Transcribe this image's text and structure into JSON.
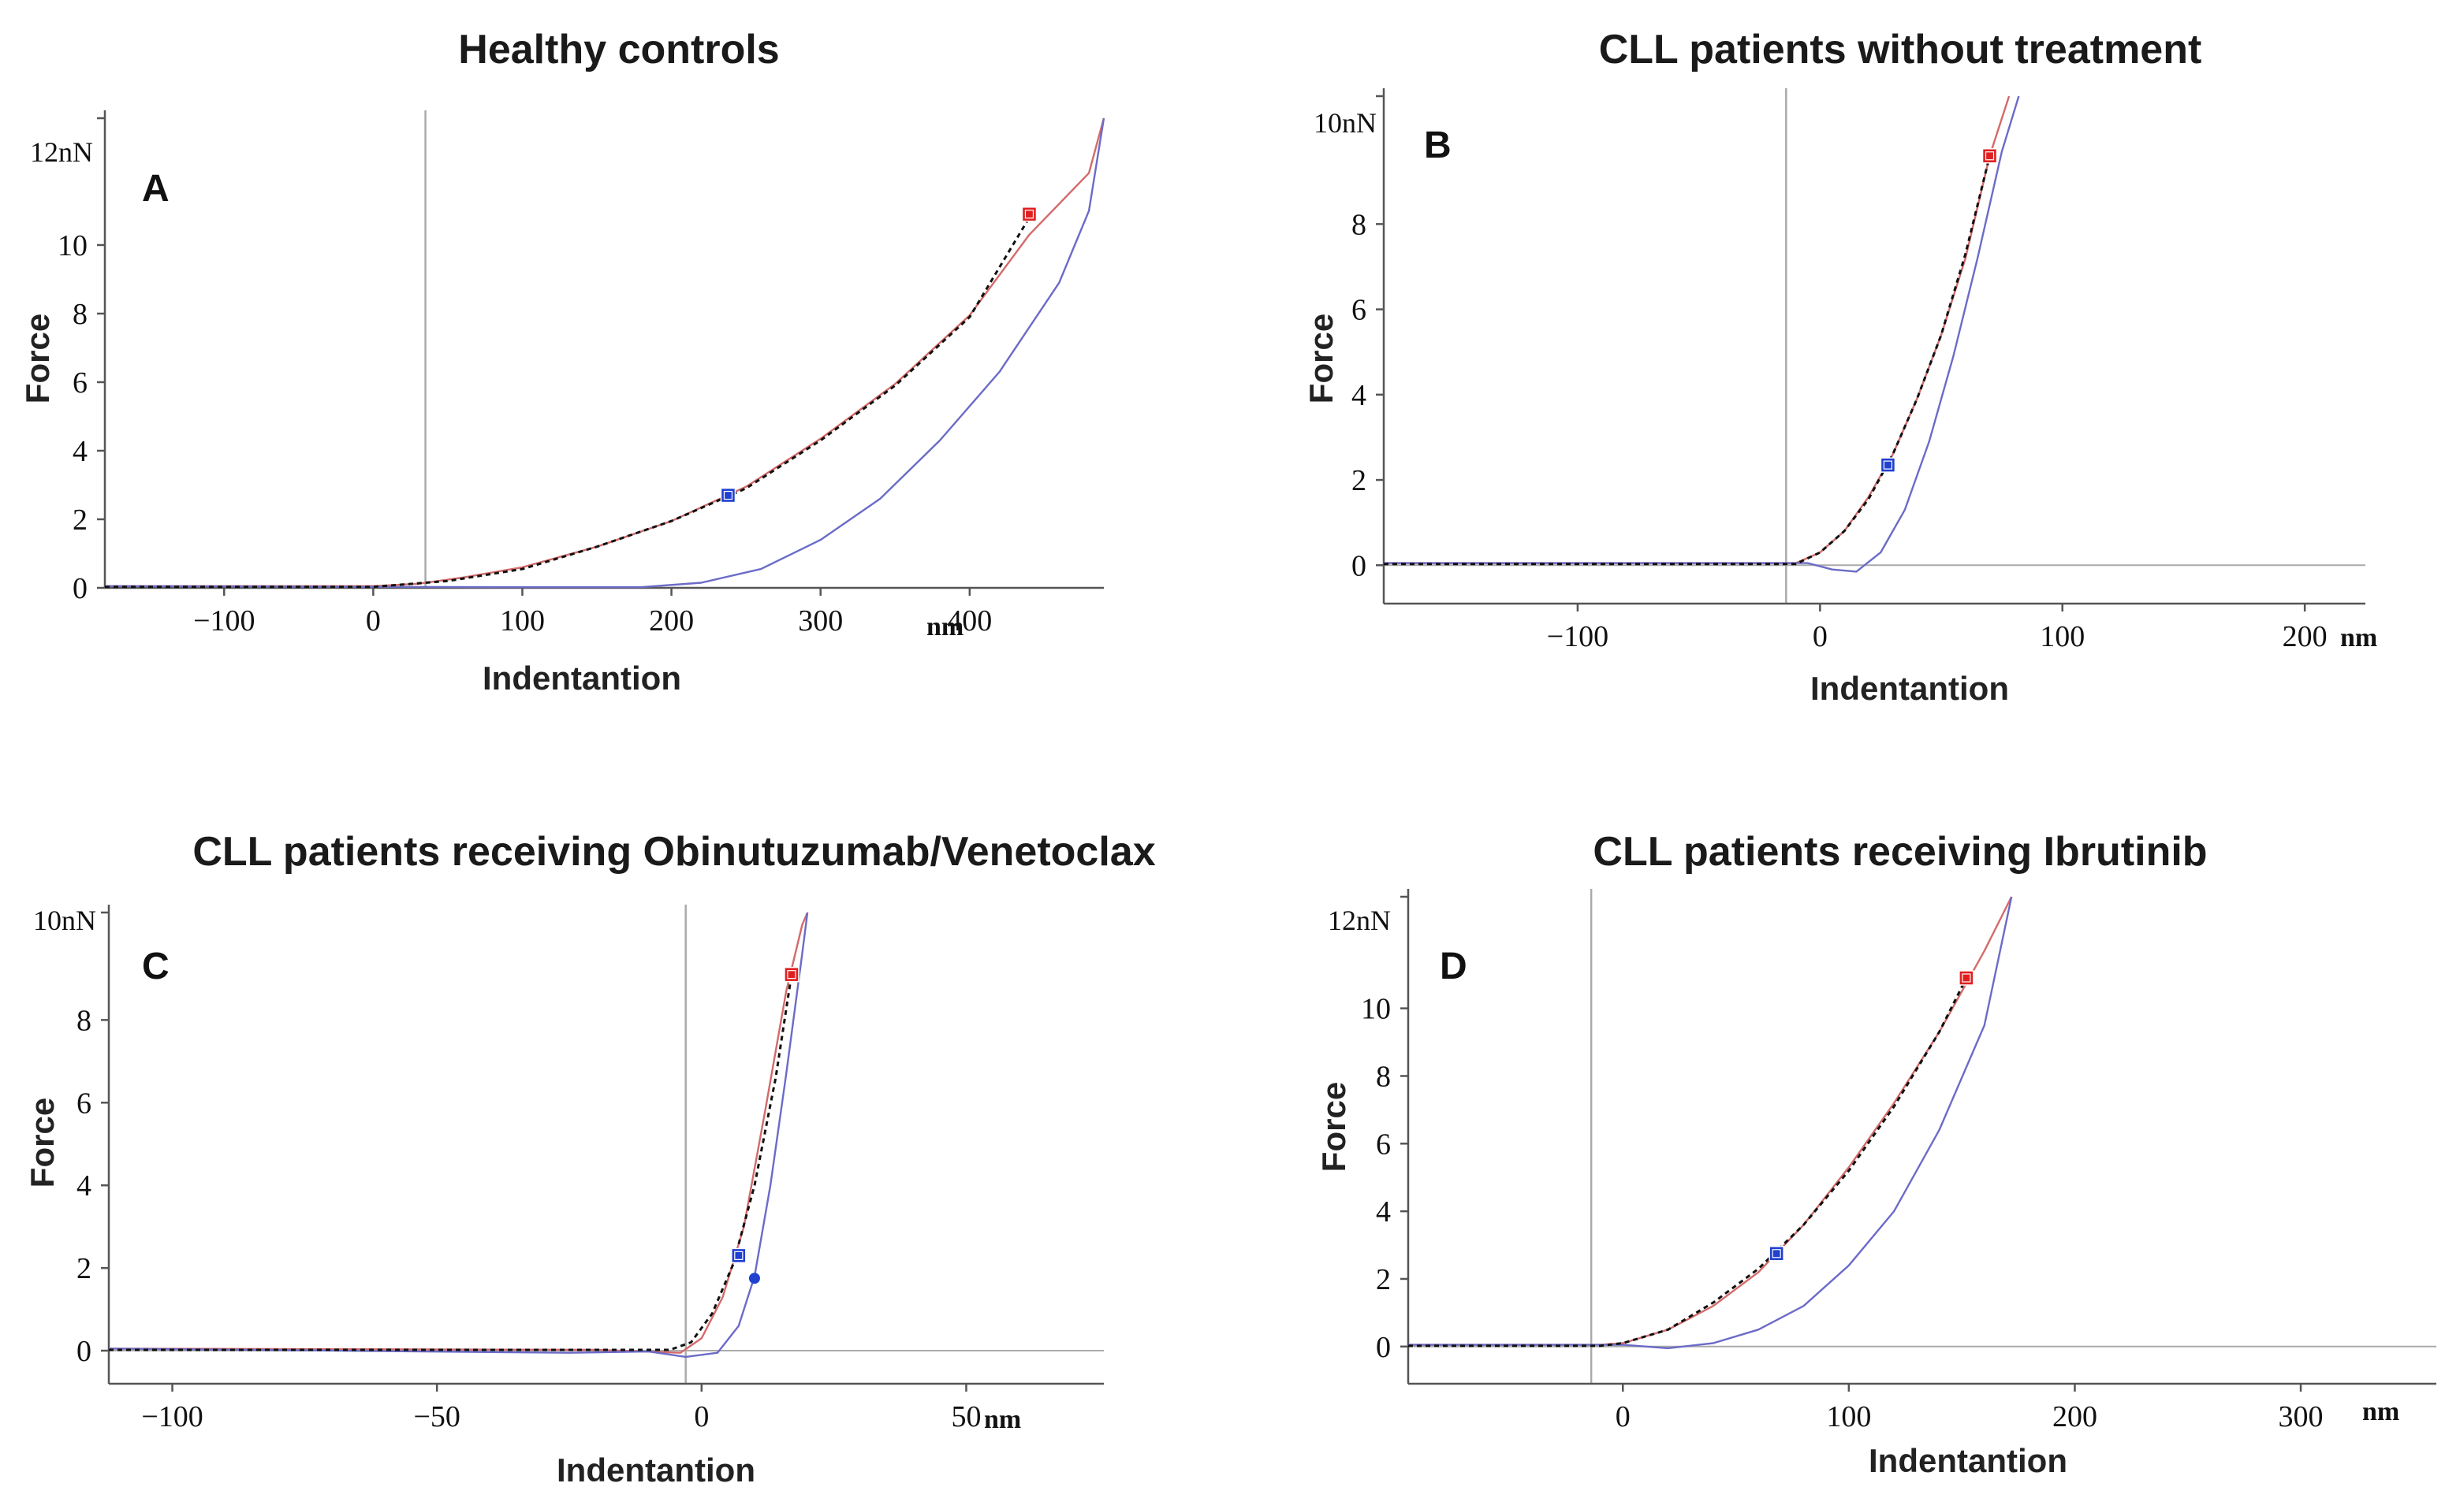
{
  "colors": {
    "approach": "#d46a6a",
    "retract": "#6b6bc8",
    "fit": "#111111",
    "red_marker": "#e02020",
    "blue_marker": "#2040d0",
    "axis": "#555555",
    "guide": "#aaaaaa"
  },
  "chart_data": [
    {
      "id": "A",
      "type": "line",
      "title": "Healthy controls",
      "panel_label": "A",
      "xlabel": "Indentantion",
      "ylabel": "Force",
      "x_unit": "nm",
      "y_unit": "nN",
      "xlim": [
        -180,
        490
      ],
      "ylim": [
        0,
        13.7
      ],
      "xticks": [
        -100,
        0,
        100,
        200,
        300,
        400
      ],
      "xtick_labels": [
        "−100",
        "0",
        "100",
        "200",
        "300",
        "400"
      ],
      "yticks": [
        0,
        2,
        4,
        6,
        8,
        10
      ],
      "ytick_labels": [
        "0",
        "2",
        "4",
        "6",
        "8",
        "10"
      ],
      "ytop_label": "12",
      "contact_x": 35,
      "series": [
        {
          "name": "approach",
          "x": [
            -180,
            0,
            30,
            60,
            100,
            150,
            200,
            250,
            300,
            350,
            400,
            440,
            480,
            490
          ],
          "y": [
            0.05,
            0.05,
            0.12,
            0.3,
            0.6,
            1.2,
            1.95,
            2.95,
            4.35,
            5.95,
            7.95,
            10.3,
            12.1,
            13.7
          ]
        },
        {
          "name": "retract",
          "x": [
            -180,
            80,
            120,
            180,
            220,
            260,
            300,
            340,
            380,
            420,
            460,
            480,
            490
          ],
          "y": [
            0.05,
            0.02,
            0.02,
            0.02,
            0.15,
            0.55,
            1.4,
            2.6,
            4.3,
            6.3,
            8.9,
            11.0,
            13.7
          ]
        },
        {
          "name": "fit",
          "x": [
            -180,
            0,
            50,
            100,
            150,
            200,
            250,
            300,
            350,
            400,
            440
          ],
          "y": [
            0.03,
            0.03,
            0.2,
            0.55,
            1.2,
            1.95,
            2.9,
            4.3,
            5.9,
            7.9,
            10.8
          ]
        }
      ],
      "markers": [
        {
          "color": "red",
          "x": 440,
          "y": 10.9
        },
        {
          "color": "blue",
          "x": 238,
          "y": 2.7
        }
      ]
    },
    {
      "id": "B",
      "type": "line",
      "title": "CLL patients without treatment",
      "panel_label": "B",
      "xlabel": "Indentantion",
      "ylabel": "Force",
      "x_unit": "nm",
      "y_unit": "nN",
      "xlim": [
        -180,
        225
      ],
      "ylim": [
        -0.9,
        11
      ],
      "xticks": [
        -100,
        0,
        100,
        200
      ],
      "xtick_labels": [
        "−100",
        "0",
        "100",
        "200"
      ],
      "yticks": [
        0,
        2,
        4,
        6,
        8
      ],
      "ytick_labels": [
        "0",
        "2",
        "4",
        "6",
        "8"
      ],
      "ytop_label": "10",
      "contact_x": -14,
      "series": [
        {
          "name": "approach",
          "x": [
            -180,
            -10,
            0,
            10,
            20,
            30,
            40,
            50,
            60,
            70,
            78
          ],
          "y": [
            0.05,
            0.05,
            0.3,
            0.8,
            1.6,
            2.6,
            3.9,
            5.4,
            7.2,
            9.6,
            11
          ]
        },
        {
          "name": "retract",
          "x": [
            -180,
            -5,
            5,
            15,
            25,
            35,
            45,
            55,
            65,
            75,
            82
          ],
          "y": [
            0.05,
            0.05,
            -0.1,
            -0.15,
            0.3,
            1.3,
            2.9,
            4.9,
            7.2,
            9.7,
            11
          ]
        },
        {
          "name": "fit",
          "x": [
            -180,
            -10,
            0,
            10,
            20,
            30,
            40,
            50,
            60,
            70
          ],
          "y": [
            0.03,
            0.03,
            0.3,
            0.8,
            1.55,
            2.6,
            3.9,
            5.4,
            7.3,
            9.6
          ]
        }
      ],
      "markers": [
        {
          "color": "red",
          "x": 70,
          "y": 9.6
        },
        {
          "color": "blue",
          "x": 28,
          "y": 2.35
        }
      ]
    },
    {
      "id": "C",
      "type": "line",
      "title": "CLL patients receiving Obinutuzumab/Venetoclax",
      "panel_label": "C",
      "xlabel": "Indentantion",
      "ylabel": "Force",
      "x_unit": "nm",
      "y_unit": "nN",
      "xlim": [
        -112,
        76
      ],
      "ylim": [
        -0.8,
        10.6
      ],
      "xticks": [
        -100,
        -50,
        0,
        50
      ],
      "xtick_labels": [
        "−100",
        "−50",
        "0",
        "50"
      ],
      "yticks": [
        0,
        2,
        4,
        6,
        8
      ],
      "ytick_labels": [
        "0",
        "2",
        "4",
        "6",
        "8"
      ],
      "ytop_label": "10",
      "contact_x": -3,
      "series": [
        {
          "name": "approach",
          "x": [
            -112,
            -20,
            -4,
            0,
            4,
            8,
            12,
            16,
            19,
            20
          ],
          "y": [
            0.05,
            0.02,
            -0.05,
            0.3,
            1.3,
            3.0,
            5.8,
            8.7,
            10.3,
            10.6
          ]
        },
        {
          "name": "retract",
          "x": [
            -112,
            -25,
            -10,
            -3,
            3,
            7,
            10,
            13,
            16,
            19,
            20
          ],
          "y": [
            0.05,
            -0.05,
            -0.02,
            -0.15,
            -0.05,
            0.6,
            1.8,
            4.0,
            6.7,
            9.6,
            10.6
          ]
        },
        {
          "name": "fit",
          "x": [
            -112,
            -6,
            -2,
            2,
            6,
            10,
            14,
            17
          ],
          "y": [
            0.02,
            0.02,
            0.2,
            0.9,
            2.1,
            4.0,
            6.6,
            9.1
          ]
        }
      ],
      "markers": [
        {
          "color": "red",
          "x": 17,
          "y": 9.1
        },
        {
          "color": "blue",
          "x": 7,
          "y": 2.3
        },
        {
          "color": "blue_dot",
          "x": 10,
          "y": 1.75
        }
      ]
    },
    {
      "id": "D",
      "type": "line",
      "title": "CLL patients receiving Ibrutinib",
      "panel_label": "D",
      "xlabel": "Indentantion",
      "ylabel": "Force",
      "x_unit": "nm",
      "y_unit": "nN",
      "xlim": [
        -95,
        360
      ],
      "ylim": [
        -1.1,
        13.3
      ],
      "xticks": [
        0,
        100,
        200,
        300
      ],
      "xtick_labels": [
        "0",
        "100",
        "200",
        "300"
      ],
      "yticks": [
        0,
        2,
        4,
        6,
        8,
        10
      ],
      "ytick_labels": [
        "0",
        "2",
        "4",
        "6",
        "8",
        "10"
      ],
      "ytop_label": "12",
      "contact_x": -14,
      "series": [
        {
          "name": "approach",
          "x": [
            -95,
            -10,
            0,
            20,
            40,
            60,
            80,
            100,
            120,
            140,
            160,
            172
          ],
          "y": [
            0.05,
            0.05,
            0.1,
            0.5,
            1.2,
            2.2,
            3.6,
            5.3,
            7.2,
            9.3,
            11.7,
            13.3
          ]
        },
        {
          "name": "retract",
          "x": [
            -95,
            0,
            20,
            40,
            60,
            80,
            100,
            120,
            140,
            160,
            172
          ],
          "y": [
            0.05,
            0.05,
            -0.05,
            0.1,
            0.5,
            1.2,
            2.4,
            4.0,
            6.4,
            9.5,
            13.3
          ]
        },
        {
          "name": "fit",
          "x": [
            -95,
            -10,
            0,
            20,
            40,
            60,
            80,
            100,
            120,
            140,
            152
          ],
          "y": [
            0.02,
            0.02,
            0.1,
            0.5,
            1.3,
            2.3,
            3.6,
            5.2,
            7.1,
            9.3,
            10.9
          ]
        }
      ],
      "markers": [
        {
          "color": "red",
          "x": 152,
          "y": 10.9
        },
        {
          "color": "blue",
          "x": 68,
          "y": 2.75
        }
      ]
    }
  ]
}
